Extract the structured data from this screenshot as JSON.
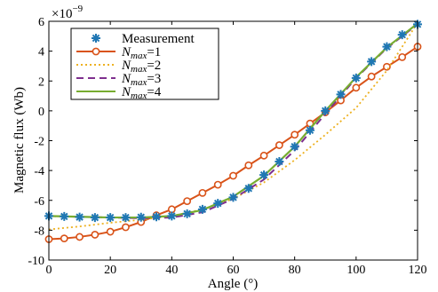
{
  "chart_data": {
    "type": "line",
    "xlabel": "Angle (°)",
    "ylabel": "Magnetic flux (Wb)",
    "y_multiplier": "×10",
    "y_exponent": "−9",
    "xlim": [
      0,
      120
    ],
    "ylim": [
      -10,
      6
    ],
    "xticks": [
      0,
      20,
      40,
      60,
      80,
      100,
      120
    ],
    "yticks": [
      -10,
      -8,
      -6,
      -4,
      -2,
      0,
      2,
      4,
      6
    ],
    "grid": false,
    "legend_position": "top-left",
    "series": [
      {
        "name": "Measurement",
        "style": "markers-star",
        "color": "#1f77b4",
        "x": [
          0,
          5,
          10,
          15,
          20,
          25,
          30,
          35,
          40,
          45,
          50,
          55,
          60,
          65,
          70,
          75,
          80,
          85,
          90,
          95,
          100,
          105,
          110,
          115,
          120
        ],
        "y": [
          -7.05,
          -7.08,
          -7.12,
          -7.15,
          -7.15,
          -7.15,
          -7.13,
          -7.1,
          -7.05,
          -6.9,
          -6.6,
          -6.2,
          -5.8,
          -5.2,
          -4.3,
          -3.4,
          -2.4,
          -1.3,
          0.0,
          1.1,
          2.2,
          3.3,
          4.3,
          5.1,
          5.8
        ]
      },
      {
        "name": "N",
        "name_sub": "max",
        "name_suffix": "=1",
        "style": "line-circle",
        "color": "#d95319",
        "x": [
          0,
          5,
          10,
          15,
          20,
          25,
          30,
          35,
          40,
          45,
          50,
          55,
          60,
          65,
          70,
          75,
          80,
          85,
          90,
          95,
          100,
          105,
          110,
          115,
          120
        ],
        "y": [
          -8.6,
          -8.55,
          -8.45,
          -8.3,
          -8.1,
          -7.8,
          -7.45,
          -7.0,
          -6.6,
          -6.05,
          -5.5,
          -4.95,
          -4.35,
          -3.65,
          -3.0,
          -2.3,
          -1.6,
          -0.85,
          -0.1,
          0.7,
          1.55,
          2.3,
          2.95,
          3.6,
          4.3
        ]
      },
      {
        "name": "N",
        "name_sub": "max",
        "name_suffix": "=2",
        "style": "dotted",
        "color": "#edb120",
        "x": [
          0,
          10,
          20,
          30,
          40,
          50,
          60,
          70,
          80,
          90,
          100,
          110,
          120
        ],
        "y": [
          -7.95,
          -7.75,
          -7.5,
          -7.3,
          -7.05,
          -6.6,
          -5.9,
          -4.8,
          -3.3,
          -1.6,
          0.2,
          2.7,
          5.9
        ]
      },
      {
        "name": "N",
        "name_sub": "max",
        "name_suffix": "=3",
        "style": "dashed",
        "color": "#7e2f8e",
        "x": [
          0,
          10,
          20,
          30,
          40,
          50,
          60,
          70,
          80,
          90,
          100,
          110,
          120
        ],
        "y": [
          -7.05,
          -7.1,
          -7.15,
          -7.2,
          -7.15,
          -6.8,
          -5.9,
          -4.6,
          -2.65,
          -0.2,
          2.2,
          4.2,
          5.8
        ]
      },
      {
        "name": "N",
        "name_sub": "max",
        "name_suffix": "=4",
        "style": "solid",
        "color": "#77ac30",
        "x": [
          0,
          10,
          20,
          30,
          40,
          50,
          60,
          70,
          80,
          90,
          100,
          110,
          120
        ],
        "y": [
          -7.05,
          -7.1,
          -7.15,
          -7.15,
          -7.05,
          -6.65,
          -5.75,
          -4.35,
          -2.4,
          0.0,
          2.25,
          4.25,
          5.85
        ]
      }
    ]
  }
}
